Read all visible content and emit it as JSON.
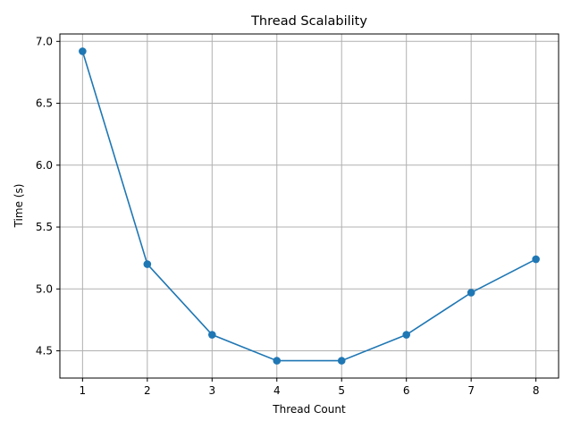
{
  "chart_data": {
    "type": "line",
    "title": "Thread Scalability",
    "xlabel": "Thread Count",
    "ylabel": "Time (s)",
    "x": [
      1,
      2,
      3,
      4,
      5,
      6,
      7,
      8
    ],
    "series": [
      {
        "values": [
          6.92,
          5.2,
          4.63,
          4.42,
          4.42,
          4.63,
          4.97,
          5.24
        ],
        "color": "#1f77b4",
        "marker": "circle"
      }
    ],
    "xlim": [
      0.65,
      8.35
    ],
    "ylim": [
      4.28,
      7.06
    ],
    "xticks": [
      "1",
      "2",
      "3",
      "4",
      "5",
      "6",
      "7",
      "8"
    ],
    "yticks": [
      "4.5",
      "5.0",
      "5.5",
      "6.0",
      "6.5",
      "7.0"
    ],
    "grid": true
  }
}
